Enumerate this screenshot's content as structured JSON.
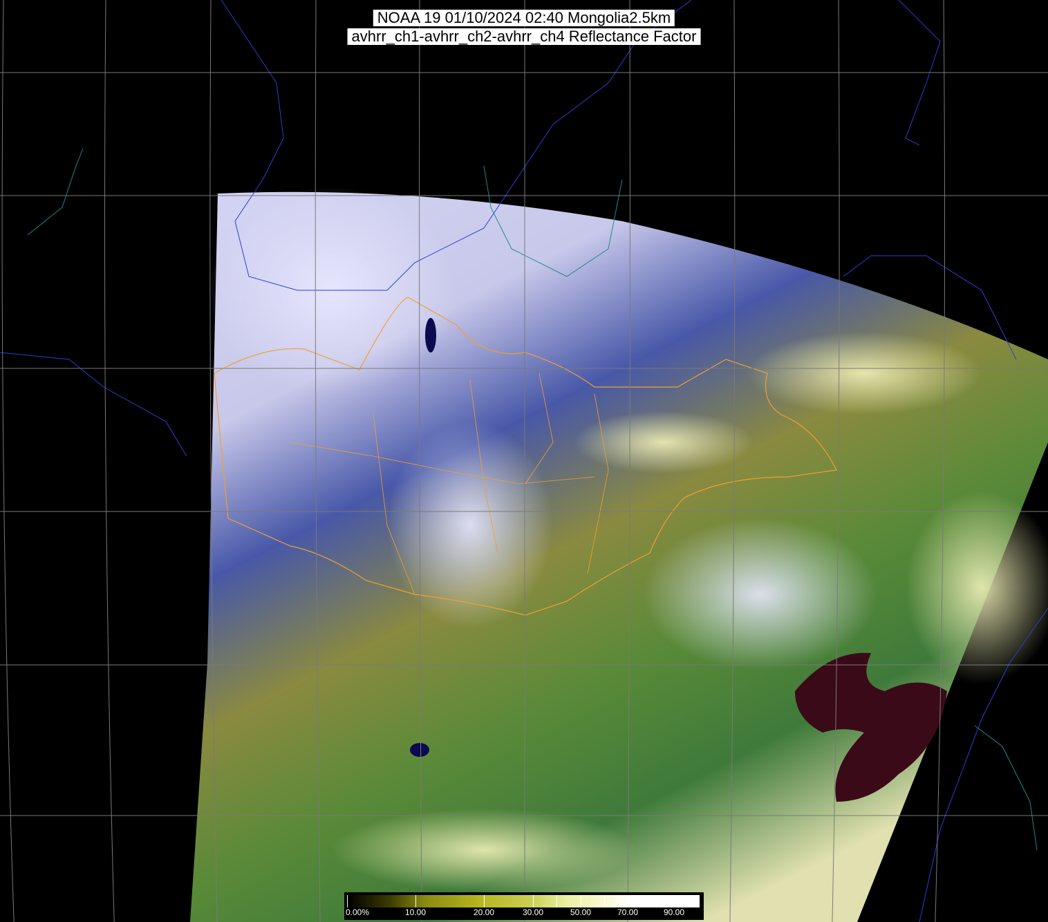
{
  "header": {
    "title_line1": "NOAA 19 01/10/2024 02:40 Mongolia2.5km",
    "title_line2": "avhrr_ch1-avhrr_ch2-avhrr_ch4 Reflectance Factor"
  },
  "colorbar": {
    "unit": "%",
    "labels": [
      "0.00%",
      "10.00",
      "20.00",
      "30.00",
      "50.00",
      "70.00",
      "90.00"
    ],
    "label_values": [
      0,
      10,
      20,
      30,
      50,
      70,
      90
    ],
    "tick_values": [
      0,
      10,
      20,
      30,
      40,
      50,
      60,
      70,
      80,
      90,
      100
    ],
    "colors": {
      "low": "#000000",
      "mid": "#b7b720",
      "high": "#ffffff"
    }
  },
  "map": {
    "colors": {
      "background": "#000000",
      "graticule": "#7a7a7a",
      "coastline": "#2a3fd0",
      "rivers": "#1e8a8a",
      "admin_borders": "#f0a030",
      "clouds": "#d8d8ff",
      "vegetation": "#3a8a30",
      "desert": "#a8a030",
      "water": "#0a0a60"
    }
  }
}
